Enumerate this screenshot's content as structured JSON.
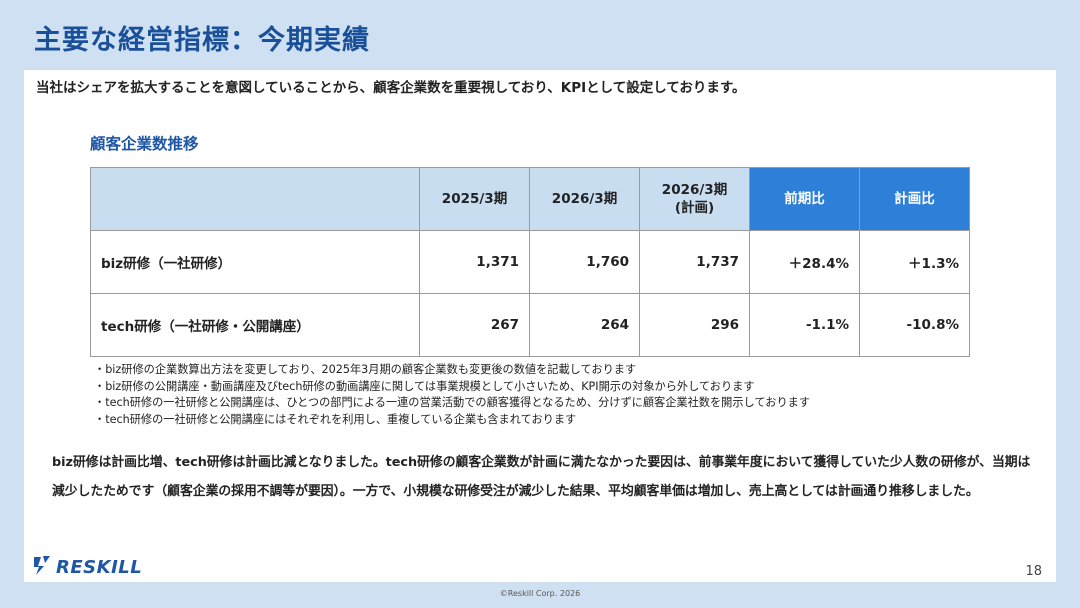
{
  "title": "主要な経営指標：今期実績",
  "lead": "当社はシェアを拡大することを意図していることから、顧客企業数を重要視しており、KPIとして設定しております。",
  "section_title": "顧客企業数推移",
  "table": {
    "headers": [
      "",
      "2025/3期",
      "2026/3期",
      "2026/3期\n(計画)",
      "前期比",
      "計画比"
    ],
    "rows": [
      {
        "name": "biz研修（一社研修）",
        "values": [
          "1,371",
          "1,760",
          "1,737",
          "＋28.4%",
          "＋1.3%"
        ]
      },
      {
        "name": "tech研修（一社研修・公開講座）",
        "values": [
          "267",
          "264",
          "296",
          "-1.1%",
          "-10.8%"
        ]
      }
    ]
  },
  "notes": [
    "・biz研修の企業数算出方法を変更しており、2025年3月期の顧客企業数も変更後の数値を記載しております",
    "・biz研修の公開講座・動画講座及びtech研修の動画講座に関しては事業規模として小さいため、KPI開示の対象から外しております",
    "・tech研修の一社研修と公開講座は、ひとつの部門による一連の営業活動での顧客獲得となるため、分けずに顧客企業社数を開示しております",
    "・tech研修の一社研修と公開講座にはそれぞれを利用し、重複している企業も含まれております"
  ],
  "summary": "biz研修は計画比増、tech研修は計画比減となりました。tech研修の顧客企業数が計画に満たなかった要因は、前事業年度において獲得していた少人数の研修が、当期は減少したためです（顧客企業の採用不調等が要因）。一方で、小規模な研修受注が減少した結果、平均顧客単価は増加し、売上高としては計画通り推移しました。",
  "logo": {
    "text": "RESKILL",
    "icon": "reskill-logo-icon"
  },
  "page_number": "18",
  "footer": "©Reskill Corp. 2026",
  "colors": {
    "title": "#1a4f9a",
    "accent_header": "#2e7fd8",
    "header_bg": "#c9ddf1",
    "background": "#cfe0f2"
  }
}
